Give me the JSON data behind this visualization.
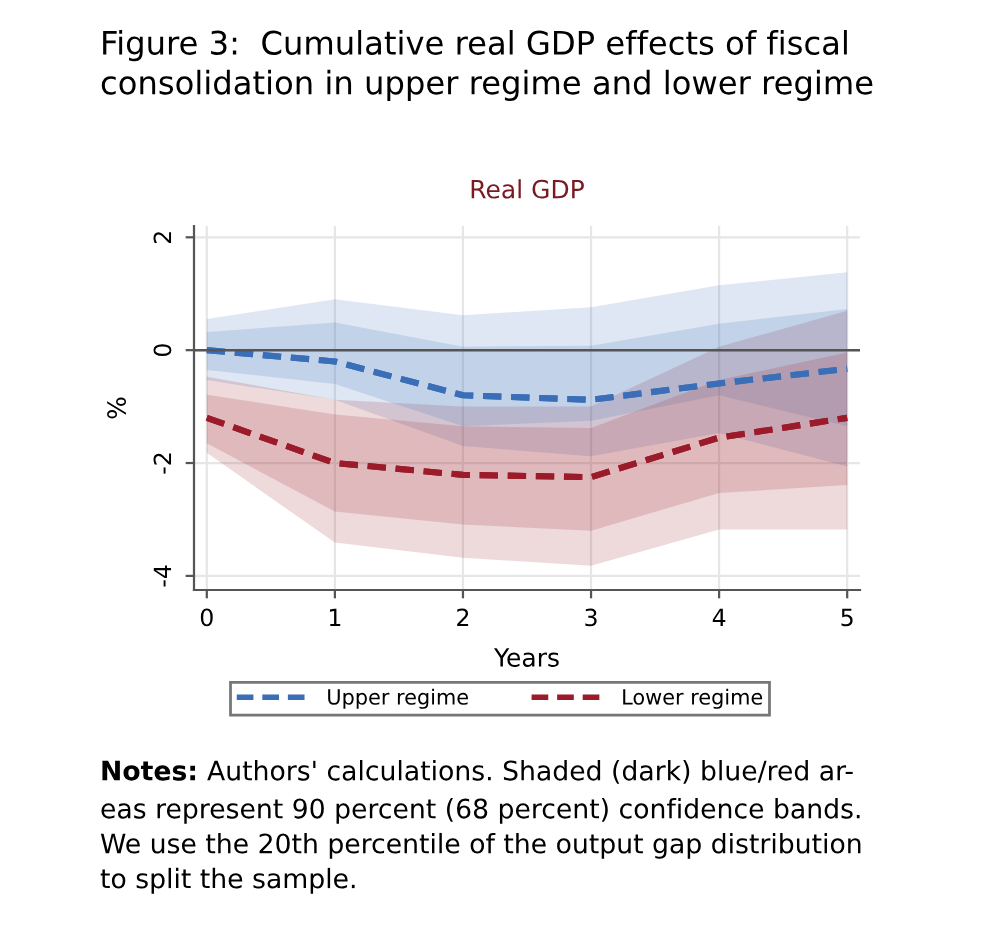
{
  "chart_data": {
    "type": "line",
    "title": "Figure 3:  Cumulative real GDP effects of fiscal\nconsolidation in upper regime and lower regime",
    "subtitle": "Real GDP",
    "xlabel": "Years",
    "ylabel": "%",
    "x": [
      0,
      1,
      2,
      3,
      4,
      5
    ],
    "xlim": [
      -0.1,
      5.1
    ],
    "xticks": [
      0,
      1,
      2,
      3,
      4,
      5
    ],
    "ylim": [
      -4.25,
      2.2
    ],
    "yticks": [
      {
        "value": -4,
        "label": "-4"
      },
      {
        "value": -2,
        "label": "-2"
      },
      0,
      2
    ],
    "grid": true,
    "legend": "bottom",
    "line_style": "dashed",
    "marker": "none",
    "ref_lines": [
      {
        "axis": "y",
        "value": 0,
        "label": null,
        "color": "#555555"
      }
    ],
    "series": [
      {
        "color": "#3a6fb8",
        "values": [
          0,
          -0.2,
          -0.8,
          -0.88,
          -0.59,
          -0.33
        ],
        "lower": [
          -0.53,
          -0.88,
          -1.7,
          -1.88,
          -1.47,
          -2.06
        ],
        "upper": [
          0.55,
          0.9,
          0.62,
          0.76,
          1.15,
          1.38
        ]
      },
      {
        "color": "#9b1b2a",
        "values": [
          -1.2,
          -2.0,
          -2.21,
          -2.25,
          -1.55,
          -1.2
        ],
        "lower": [
          -1.82,
          -3.41,
          -3.68,
          -3.82,
          -3.18,
          -3.18
        ],
        "upper": [
          -0.47,
          -0.88,
          -1.0,
          -1.0,
          0.06,
          0.7
        ]
      },
      {
        "name": "Upper regime",
        "color": "#3a6fb8",
        "values": [
          0,
          -0.2,
          -0.8,
          -0.88,
          -0.59,
          -0.33
        ],
        "lower": [
          -0.35,
          -0.6,
          -1.35,
          -1.25,
          -0.8,
          -1.35
        ],
        "upper": [
          0.32,
          0.49,
          0.06,
          0.08,
          0.47,
          0.73
        ]
      },
      {
        "name": "Lower regime",
        "color": "#9b1b2a",
        "values": [
          -1.2,
          -2.0,
          -2.21,
          -2.25,
          -1.55,
          -1.2
        ],
        "lower": [
          -1.65,
          -2.86,
          -3.09,
          -3.2,
          -2.53,
          -2.39
        ],
        "upper": [
          -0.79,
          -1.14,
          -1.35,
          -1.38,
          -0.53,
          -0.04
        ]
      }
    ],
    "annotations": [
      "Notes:",
      " Authors' calculations. Shaded (dark) blue/red ar-\neas represent 90 percent (68 percent) confidence bands.\nWe use the 20th percentile of the output gap distribution\nto split the sample."
    ]
  }
}
